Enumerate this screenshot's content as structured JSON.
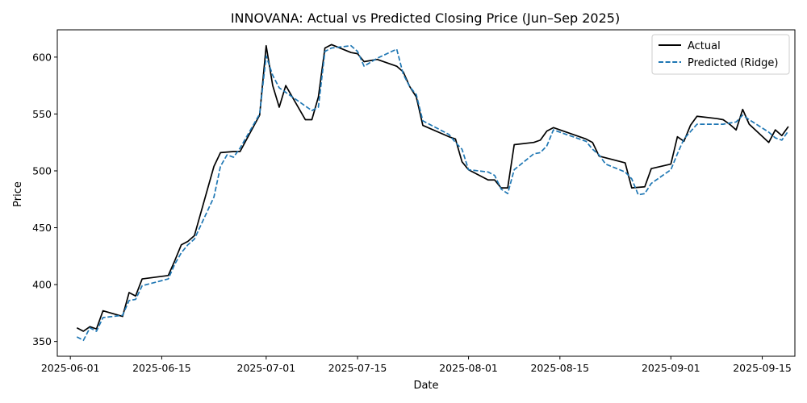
{
  "chart_data": {
    "type": "line",
    "title": "INNOVANA: Actual vs Predicted Closing Price (Jun–Sep 2025)",
    "xlabel": "Date",
    "ylabel": "Price",
    "x_axis_type": "date",
    "xlim": [
      "2025-05-30",
      "2025-09-20"
    ],
    "ylim": [
      337,
      624
    ],
    "x_ticks": [
      "2025-06-01",
      "2025-06-15",
      "2025-07-01",
      "2025-07-15",
      "2025-08-01",
      "2025-08-15",
      "2025-09-01",
      "2025-09-15"
    ],
    "y_ticks": [
      350,
      400,
      450,
      500,
      550,
      600
    ],
    "legend_position": "top-right",
    "grid": false,
    "series": [
      {
        "name": "Actual",
        "color": "#000000",
        "style": "solid",
        "points": [
          [
            "2025-06-02",
            362
          ],
          [
            "2025-06-03",
            359
          ],
          [
            "2025-06-04",
            363
          ],
          [
            "2025-06-05",
            361
          ],
          [
            "2025-06-06",
            377
          ],
          [
            "2025-06-09",
            372
          ],
          [
            "2025-06-10",
            393
          ],
          [
            "2025-06-11",
            390
          ],
          [
            "2025-06-12",
            405
          ],
          [
            "2025-06-16",
            408
          ],
          [
            "2025-06-17",
            421
          ],
          [
            "2025-06-18",
            435
          ],
          [
            "2025-06-19",
            438
          ],
          [
            "2025-06-20",
            443
          ],
          [
            "2025-06-23",
            504
          ],
          [
            "2025-06-24",
            516
          ],
          [
            "2025-06-26",
            517
          ],
          [
            "2025-06-27",
            517
          ],
          [
            "2025-06-30",
            549
          ],
          [
            "2025-07-01",
            610
          ],
          [
            "2025-07-02",
            575
          ],
          [
            "2025-07-03",
            556
          ],
          [
            "2025-07-04",
            575
          ],
          [
            "2025-07-07",
            545
          ],
          [
            "2025-07-08",
            545
          ],
          [
            "2025-07-09",
            565
          ],
          [
            "2025-07-10",
            608
          ],
          [
            "2025-07-11",
            611
          ],
          [
            "2025-07-14",
            604
          ],
          [
            "2025-07-15",
            603
          ],
          [
            "2025-07-16",
            596
          ],
          [
            "2025-07-18",
            598
          ],
          [
            "2025-07-21",
            592
          ],
          [
            "2025-07-22",
            587
          ],
          [
            "2025-07-23",
            574
          ],
          [
            "2025-07-24",
            565
          ],
          [
            "2025-07-25",
            540
          ],
          [
            "2025-07-29",
            530
          ],
          [
            "2025-07-30",
            528
          ],
          [
            "2025-07-31",
            508
          ],
          [
            "2025-08-01",
            501
          ],
          [
            "2025-08-04",
            492
          ],
          [
            "2025-08-05",
            492
          ],
          [
            "2025-08-06",
            485
          ],
          [
            "2025-08-07",
            485
          ],
          [
            "2025-08-08",
            523
          ],
          [
            "2025-08-11",
            525
          ],
          [
            "2025-08-12",
            527
          ],
          [
            "2025-08-13",
            535
          ],
          [
            "2025-08-14",
            538
          ],
          [
            "2025-08-19",
            528
          ],
          [
            "2025-08-20",
            525
          ],
          [
            "2025-08-21",
            513
          ],
          [
            "2025-08-25",
            507
          ],
          [
            "2025-08-26",
            485
          ],
          [
            "2025-08-28",
            486
          ],
          [
            "2025-08-29",
            502
          ],
          [
            "2025-09-01",
            506
          ],
          [
            "2025-09-02",
            530
          ],
          [
            "2025-09-03",
            526
          ],
          [
            "2025-09-04",
            540
          ],
          [
            "2025-09-05",
            548
          ],
          [
            "2025-09-08",
            546
          ],
          [
            "2025-09-09",
            545
          ],
          [
            "2025-09-10",
            541
          ],
          [
            "2025-09-11",
            536
          ],
          [
            "2025-09-12",
            554
          ],
          [
            "2025-09-13",
            541
          ],
          [
            "2025-09-16",
            525
          ],
          [
            "2025-09-17",
            536
          ],
          [
            "2025-09-18",
            531
          ],
          [
            "2025-09-19",
            539
          ]
        ]
      },
      {
        "name": "Predicted (Ridge)",
        "color": "#1f77b4",
        "style": "dashed",
        "points": [
          [
            "2025-06-02",
            354
          ],
          [
            "2025-06-03",
            351
          ],
          [
            "2025-06-04",
            362
          ],
          [
            "2025-06-05",
            359
          ],
          [
            "2025-06-06",
            371
          ],
          [
            "2025-06-09",
            373
          ],
          [
            "2025-06-10",
            386
          ],
          [
            "2025-06-11",
            387
          ],
          [
            "2025-06-12",
            399
          ],
          [
            "2025-06-16",
            405
          ],
          [
            "2025-06-17",
            418
          ],
          [
            "2025-06-18",
            428
          ],
          [
            "2025-06-19",
            435
          ],
          [
            "2025-06-20",
            440
          ],
          [
            "2025-06-23",
            477
          ],
          [
            "2025-06-24",
            504
          ],
          [
            "2025-06-25",
            514
          ],
          [
            "2025-06-26",
            512
          ],
          [
            "2025-06-27",
            520
          ],
          [
            "2025-06-30",
            550
          ],
          [
            "2025-07-01",
            601
          ],
          [
            "2025-07-02",
            584
          ],
          [
            "2025-07-03",
            573
          ],
          [
            "2025-07-04",
            569
          ],
          [
            "2025-07-07",
            557
          ],
          [
            "2025-07-08",
            553
          ],
          [
            "2025-07-09",
            556
          ],
          [
            "2025-07-10",
            605
          ],
          [
            "2025-07-11",
            608
          ],
          [
            "2025-07-14",
            610
          ],
          [
            "2025-07-15",
            605
          ],
          [
            "2025-07-16",
            592
          ],
          [
            "2025-07-18",
            599
          ],
          [
            "2025-07-21",
            607
          ],
          [
            "2025-07-22",
            585
          ],
          [
            "2025-07-23",
            574
          ],
          [
            "2025-07-24",
            567
          ],
          [
            "2025-07-25",
            544
          ],
          [
            "2025-07-29",
            532
          ],
          [
            "2025-07-30",
            525
          ],
          [
            "2025-07-31",
            519
          ],
          [
            "2025-08-01",
            501
          ],
          [
            "2025-08-04",
            499
          ],
          [
            "2025-08-05",
            496
          ],
          [
            "2025-08-06",
            484
          ],
          [
            "2025-08-07",
            480
          ],
          [
            "2025-08-08",
            501
          ],
          [
            "2025-08-11",
            515
          ],
          [
            "2025-08-12",
            516
          ],
          [
            "2025-08-13",
            522
          ],
          [
            "2025-08-14",
            536
          ],
          [
            "2025-08-19",
            526
          ],
          [
            "2025-08-20",
            519
          ],
          [
            "2025-08-21",
            514
          ],
          [
            "2025-08-22",
            506
          ],
          [
            "2025-08-25",
            499
          ],
          [
            "2025-08-26",
            493
          ],
          [
            "2025-08-27",
            479
          ],
          [
            "2025-08-28",
            480
          ],
          [
            "2025-08-29",
            489
          ],
          [
            "2025-09-01",
            501
          ],
          [
            "2025-09-02",
            515
          ],
          [
            "2025-09-03",
            528
          ],
          [
            "2025-09-05",
            541
          ],
          [
            "2025-09-08",
            541
          ],
          [
            "2025-09-09",
            541
          ],
          [
            "2025-09-11",
            543
          ],
          [
            "2025-09-12",
            549
          ],
          [
            "2025-09-13",
            545
          ],
          [
            "2025-09-16",
            534
          ],
          [
            "2025-09-17",
            529
          ],
          [
            "2025-09-18",
            527
          ],
          [
            "2025-09-19",
            535
          ]
        ]
      }
    ]
  }
}
